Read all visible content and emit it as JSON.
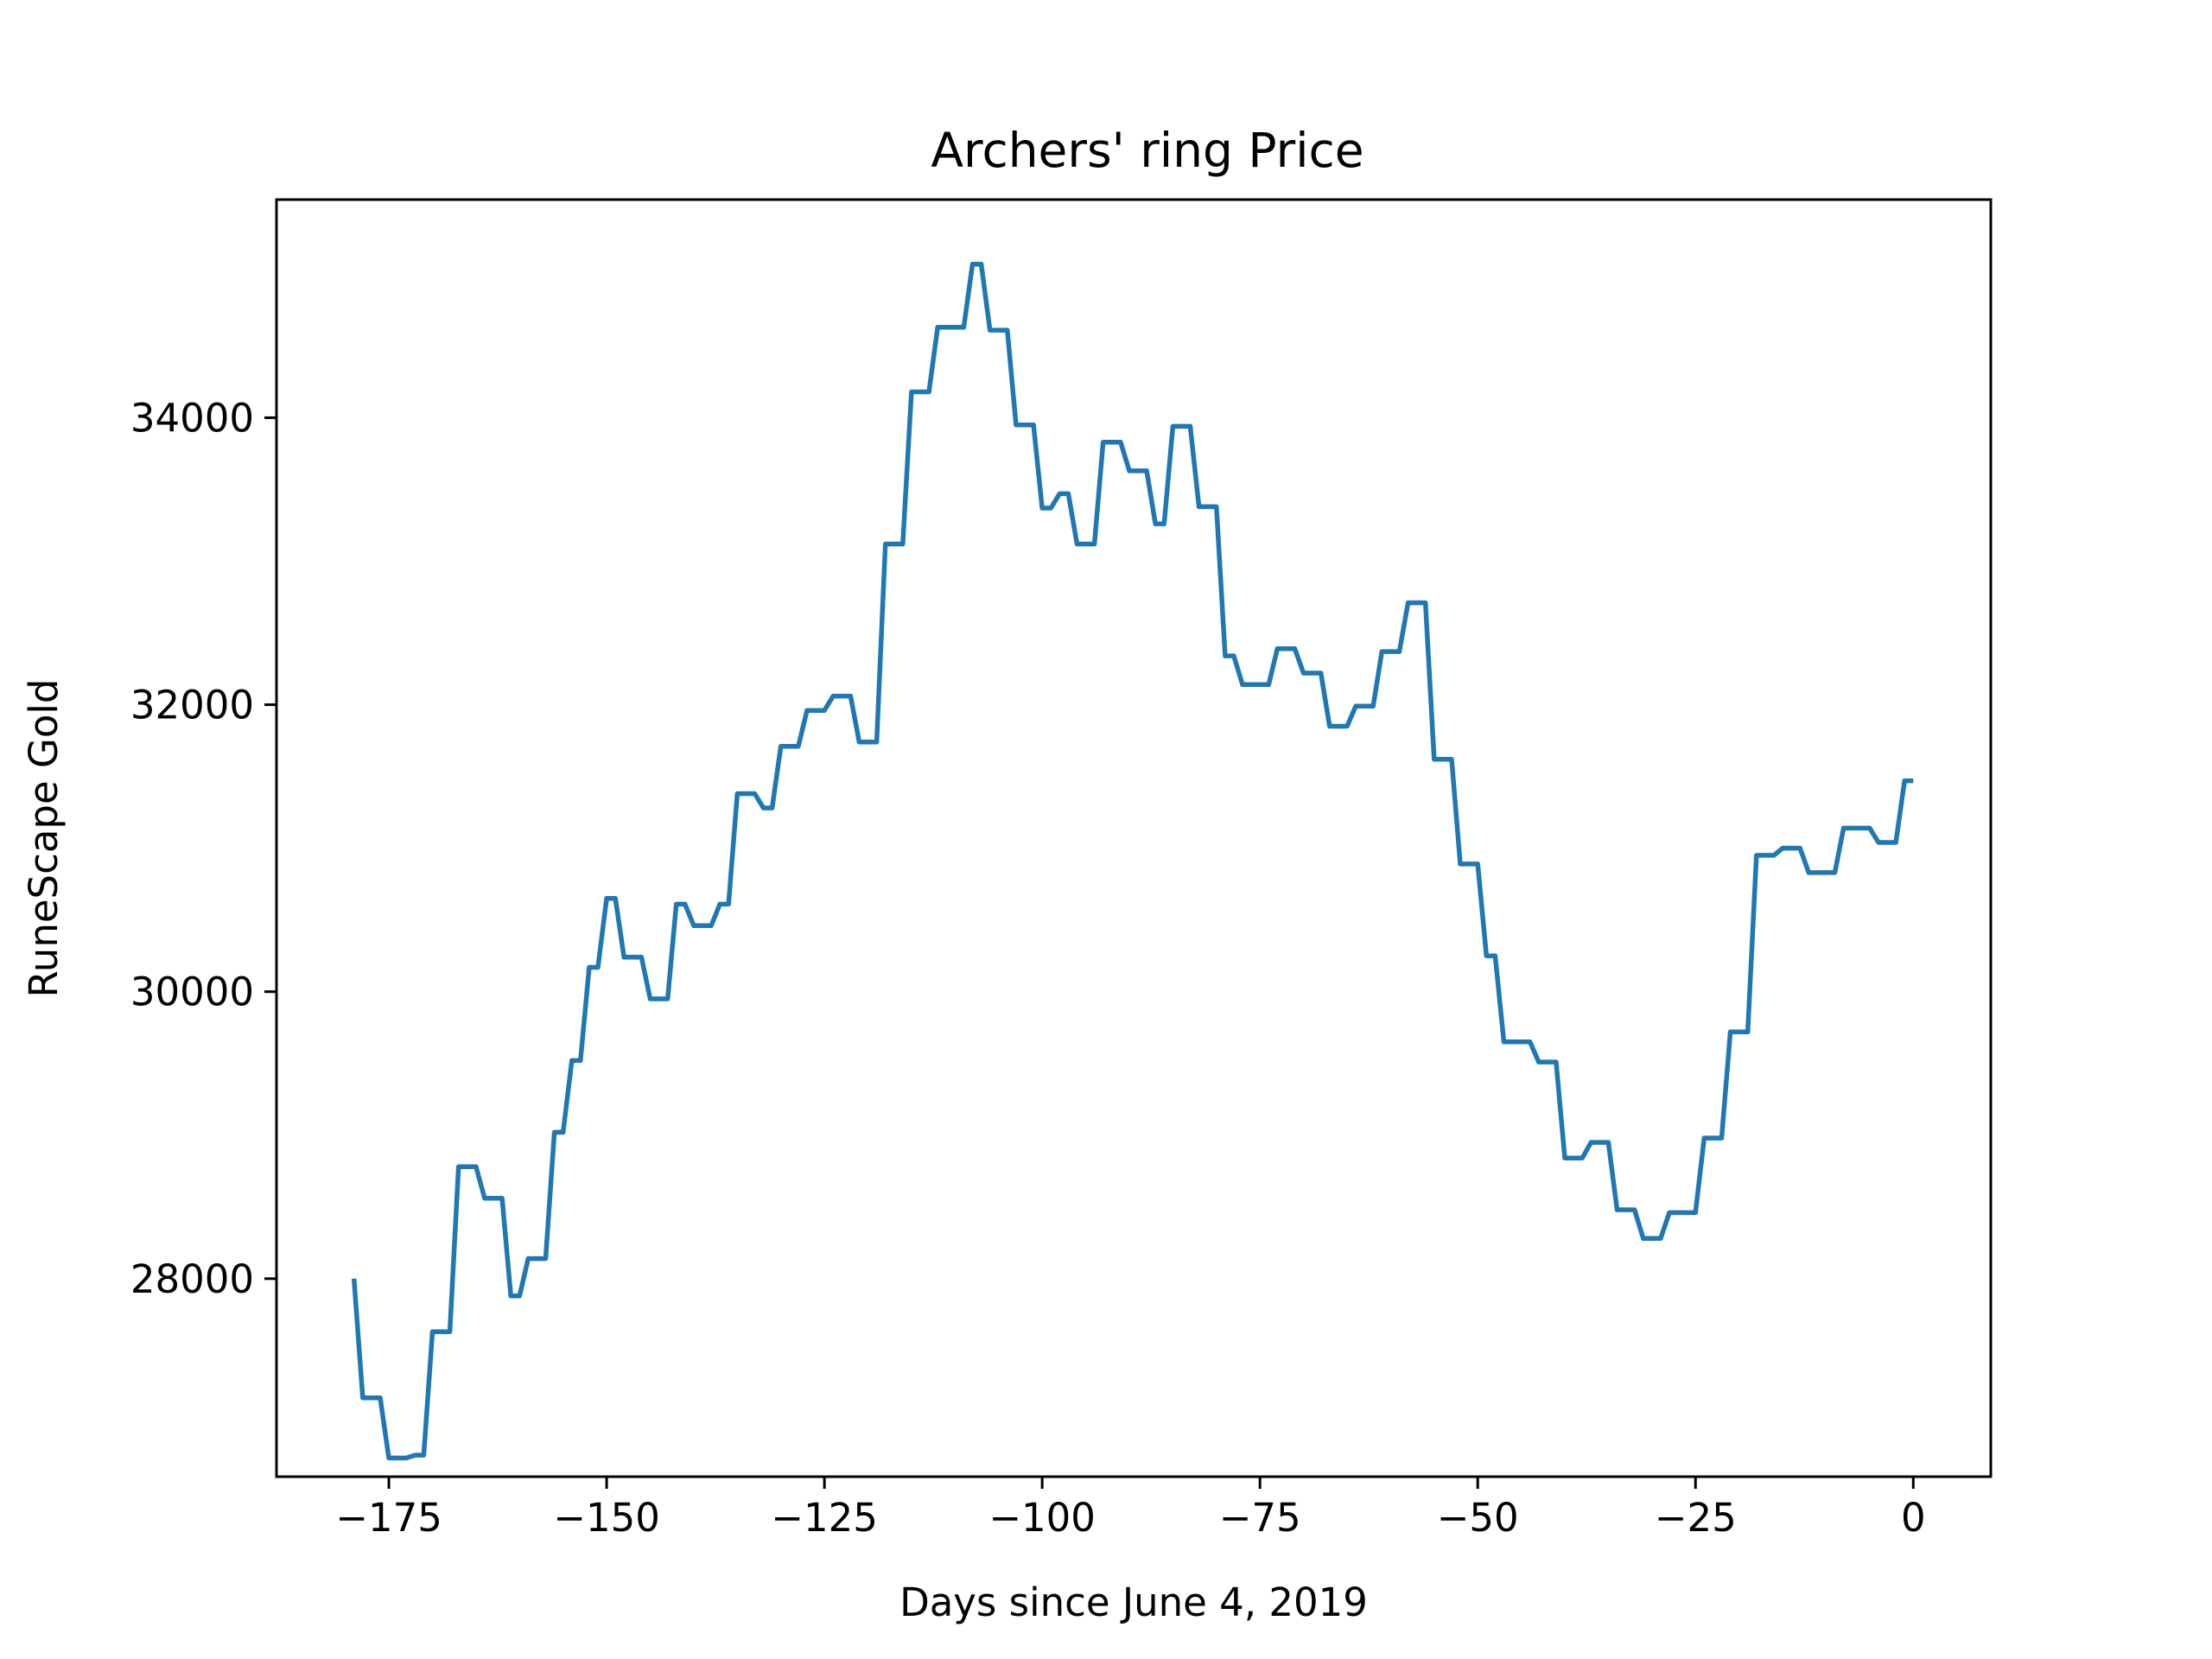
{
  "chart_data": {
    "type": "line",
    "title": "Archers' ring Price",
    "xlabel": "Days since June 4, 2019",
    "ylabel": "RuneScape Gold",
    "xlim": [
      -187.9,
      8.9
    ],
    "ylim": [
      26620,
      35520
    ],
    "x_ticks": [
      -175,
      -150,
      -125,
      -100,
      -75,
      -50,
      -25,
      0
    ],
    "x_tick_labels": [
      "−175",
      "−150",
      "−125",
      "−100",
      "−75",
      "−50",
      "−25",
      "0"
    ],
    "y_ticks": [
      28000,
      30000,
      32000,
      34000
    ],
    "y_tick_labels": [
      "28000",
      "30000",
      "32000",
      "34000"
    ],
    "grid": false,
    "line_color": "#1f77b4",
    "series": [
      {
        "x": [
          -179,
          -178,
          -177,
          -176,
          -175,
          -174,
          -173,
          -172,
          -171,
          -170,
          -169,
          -168,
          -167,
          -166,
          -165,
          -164,
          -163,
          -162,
          -161,
          -160,
          -159,
          -158,
          -157,
          -156,
          -155,
          -154,
          -153,
          -152,
          -151,
          -150,
          -149,
          -148,
          -147,
          -146,
          -145,
          -144,
          -143,
          -142,
          -141,
          -140,
          -139,
          -138,
          -137,
          -136,
          -135,
          -134,
          -133,
          -132,
          -131,
          -130,
          -129,
          -128,
          -127,
          -126,
          -125,
          -124,
          -123,
          -122,
          -121,
          -120,
          -119,
          -118,
          -117,
          -116,
          -115,
          -114,
          -113,
          -112,
          -111,
          -110,
          -109,
          -108,
          -107,
          -106,
          -105,
          -104,
          -103,
          -102,
          -101,
          -100,
          -99,
          -98,
          -97,
          -96,
          -95,
          -94,
          -93,
          -92,
          -91,
          -90,
          -89,
          -88,
          -87,
          -86,
          -85,
          -84,
          -83,
          -82,
          -81,
          -80,
          -79,
          -78,
          -77,
          -76,
          -75,
          -74,
          -73,
          -72,
          -71,
          -70,
          -69,
          -68,
          -67,
          -66,
          -65,
          -64,
          -63,
          -62,
          -61,
          -60,
          -59,
          -58,
          -57,
          -56,
          -55,
          -54,
          -53,
          -52,
          -51,
          -50,
          -49,
          -48,
          -47,
          -46,
          -45,
          -44,
          -43,
          -42,
          -41,
          -40,
          -39,
          -38,
          -37,
          -36,
          -35,
          -34,
          -33,
          -32,
          -31,
          -30,
          -29,
          -28,
          -27,
          -26,
          -25,
          -24,
          -23,
          -22,
          -21,
          -20,
          -19,
          -18,
          -17,
          -16,
          -15,
          -14,
          -13,
          -12,
          -11,
          -10,
          -9,
          -8,
          -7,
          -6,
          -5,
          -4,
          -3,
          -2,
          -1,
          0
        ],
        "values": [
          28000,
          27170,
          27170,
          27170,
          26750,
          26750,
          26750,
          26770,
          26770,
          27630,
          27630,
          27630,
          28780,
          28780,
          28780,
          28560,
          28560,
          28560,
          27880,
          27880,
          28140,
          28140,
          28140,
          29020,
          29020,
          29520,
          29520,
          30170,
          30170,
          30650,
          30650,
          30240,
          30240,
          30240,
          29950,
          29950,
          29950,
          30610,
          30610,
          30460,
          30460,
          30460,
          30610,
          30610,
          31380,
          31380,
          31380,
          31280,
          31280,
          31710,
          31710,
          31710,
          31960,
          31960,
          31960,
          32060,
          32060,
          32060,
          31740,
          31740,
          31740,
          33120,
          33120,
          33120,
          34180,
          34180,
          34180,
          34630,
          34630,
          34630,
          34630,
          35070,
          35070,
          34610,
          34610,
          34610,
          33950,
          33950,
          33950,
          33370,
          33370,
          33470,
          33470,
          33120,
          33120,
          33120,
          33830,
          33830,
          33830,
          33630,
          33630,
          33630,
          33260,
          33260,
          33940,
          33940,
          33940,
          33380,
          33380,
          33380,
          32340,
          32340,
          32140,
          32140,
          32140,
          32140,
          32390,
          32390,
          32390,
          32220,
          32220,
          32220,
          31850,
          31850,
          31850,
          31990,
          31990,
          31990,
          32370,
          32370,
          32370,
          32710,
          32710,
          32710,
          31620,
          31620,
          31620,
          30890,
          30890,
          30890,
          30250,
          30250,
          29650,
          29650,
          29650,
          29650,
          29510,
          29510,
          29510,
          28840,
          28840,
          28840,
          28950,
          28950,
          28950,
          28480,
          28480,
          28480,
          28280,
          28280,
          28280,
          28460,
          28460,
          28460,
          28460,
          28980,
          28980,
          28980,
          29720,
          29720,
          29720,
          30950,
          30950,
          30950,
          31000,
          31000,
          31000,
          30830,
          30830,
          30830,
          30830,
          31140,
          31140,
          31140,
          31140,
          31040,
          31040,
          31040,
          31470,
          31470
        ]
      }
    ]
  }
}
